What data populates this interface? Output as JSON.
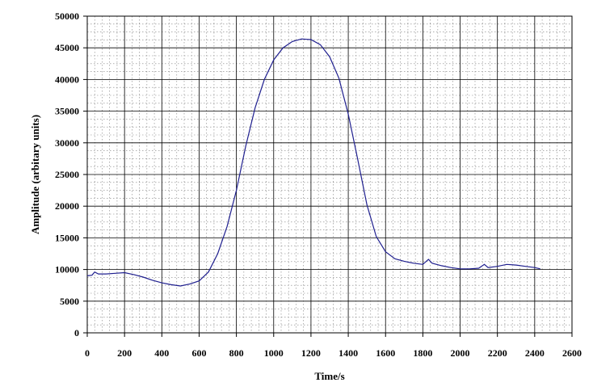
{
  "chart_data": {
    "type": "line",
    "title": "",
    "xlabel": "Time/s",
    "ylabel": "Amplitude (arbitary units)",
    "xlim": [
      0,
      2600
    ],
    "ylim": [
      0,
      50000
    ],
    "x_ticks": [
      0,
      200,
      400,
      600,
      800,
      1000,
      1200,
      1400,
      1600,
      1800,
      2000,
      2200,
      2400,
      2600
    ],
    "y_ticks": [
      0,
      5000,
      10000,
      15000,
      20000,
      25000,
      30000,
      35000,
      40000,
      45000,
      50000
    ],
    "grid": true,
    "legend": "none",
    "series": [
      {
        "color": "#1f1f8f",
        "x": [
          0,
          25,
          40,
          60,
          100,
          150,
          200,
          250,
          300,
          350,
          400,
          450,
          500,
          550,
          600,
          650,
          700,
          750,
          800,
          850,
          900,
          950,
          1000,
          1050,
          1100,
          1150,
          1200,
          1250,
          1300,
          1350,
          1400,
          1450,
          1500,
          1550,
          1600,
          1650,
          1700,
          1750,
          1800,
          1830,
          1850,
          1900,
          1950,
          2000,
          2050,
          2100,
          2130,
          2150,
          2200,
          2250,
          2300,
          2350,
          2400,
          2430
        ],
        "values": [
          9000,
          9100,
          9600,
          9300,
          9300,
          9400,
          9500,
          9200,
          8800,
          8300,
          7900,
          7600,
          7400,
          7700,
          8200,
          9600,
          12500,
          16800,
          22500,
          29500,
          35500,
          40000,
          43100,
          45000,
          46000,
          46400,
          46300,
          45500,
          43600,
          40200,
          34500,
          27500,
          20200,
          15200,
          12800,
          11700,
          11300,
          11000,
          10800,
          11600,
          11000,
          10600,
          10300,
          10100,
          10100,
          10200,
          10800,
          10300,
          10500,
          10800,
          10700,
          10500,
          10300,
          10100
        ]
      }
    ]
  }
}
